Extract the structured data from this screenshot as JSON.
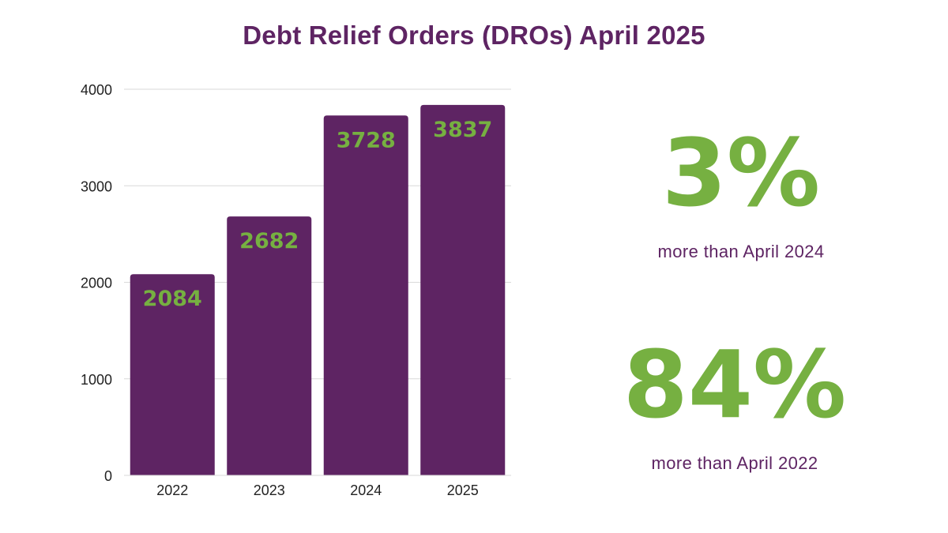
{
  "title": "Debt Relief Orders (DROs) April 2025",
  "colors": {
    "title": "#5e2463",
    "bar": "#5e2463",
    "bar_label": "#76b041",
    "stat_value": "#76b041",
    "stat_caption": "#5e2463",
    "grid": "#d9d9d9",
    "axis_text": "#222222"
  },
  "chart_data": {
    "type": "bar",
    "categories": [
      "2022",
      "2023",
      "2024",
      "2025"
    ],
    "values": [
      2084,
      2682,
      3728,
      3837
    ],
    "title": "Debt Relief Orders (DROs) April 2025",
    "xlabel": "",
    "ylabel": "",
    "ylim": [
      0,
      4000
    ],
    "yticks": [
      0,
      1000,
      2000,
      3000,
      4000
    ],
    "grid": true,
    "data_labels": true
  },
  "stats": [
    {
      "value": "3%",
      "caption": "more than April 2024"
    },
    {
      "value": "84%",
      "caption": "more than April 2022"
    }
  ]
}
